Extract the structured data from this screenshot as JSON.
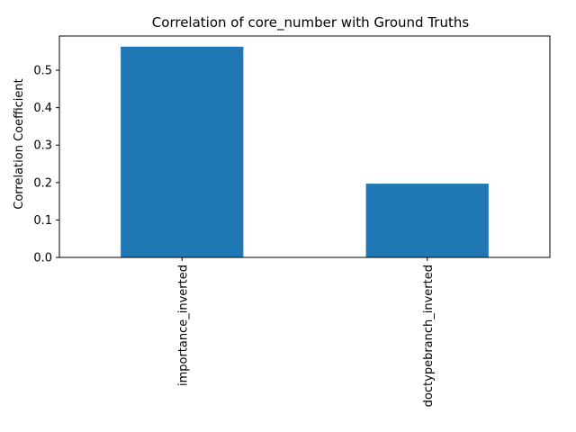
{
  "chart_data": {
    "type": "bar",
    "title": "Correlation of core_number with Ground Truths",
    "xlabel": "",
    "ylabel": "Correlation Coefficient",
    "categories": [
      "importance_inverted",
      "doctypebranch_inverted"
    ],
    "values": [
      0.563,
      0.197
    ],
    "ylim": [
      0,
      0.5915
    ],
    "yticks": [
      0.0,
      0.1,
      0.2,
      0.3,
      0.4,
      0.5
    ],
    "ytick_labels": [
      "0.0",
      "0.1",
      "0.2",
      "0.3",
      "0.4",
      "0.5"
    ],
    "bar_color": "#1f77b4",
    "grid": false,
    "legend": "none"
  }
}
